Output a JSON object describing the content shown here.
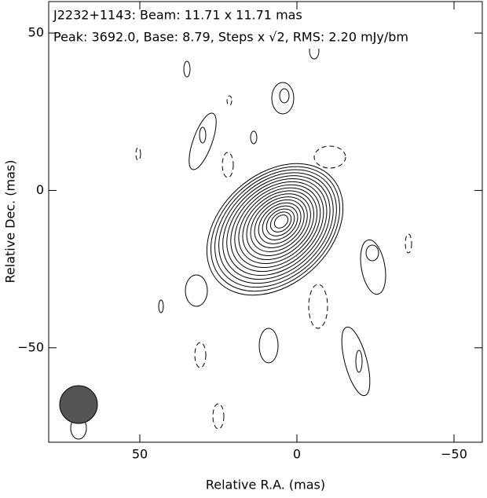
{
  "chart_data": {
    "type": "contour",
    "title": "J2232+1143: Beam: 11.71 x 11.71 mas",
    "subtitle": "Peak: 3692.0, Base: 8.79, Steps x √2, RMS: 2.20 mJy/bm",
    "x_label": "Relative R.A. (mas)",
    "y_label": "Relative Dec. (mas)",
    "xlim": [
      79,
      -59
    ],
    "ylim": [
      -80,
      60
    ],
    "xticks": [
      50,
      0,
      {
        "value": -50,
        "label": "−50"
      }
    ],
    "yticks": [
      50,
      0,
      {
        "value": -50,
        "label": "−50"
      }
    ]
  }
}
